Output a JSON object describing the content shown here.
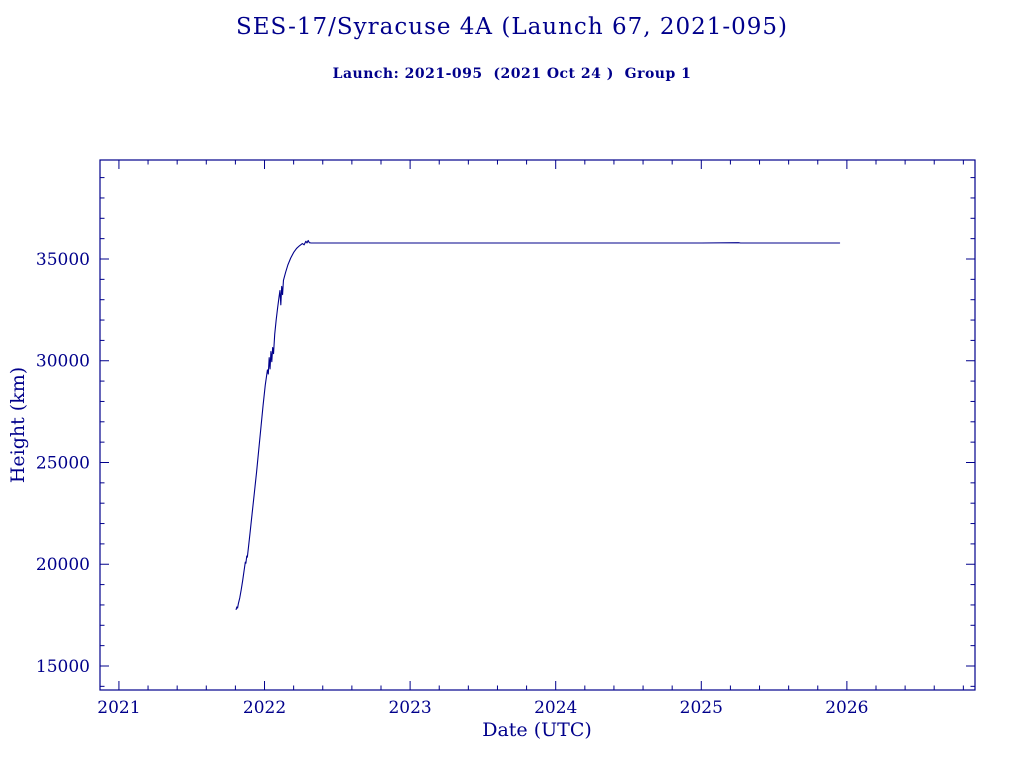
{
  "header": {
    "title": "SES-17/Syracuse 4A (Launch 67, 2021-095)",
    "subtitle": "Launch: 2021-095  (2021 Oct 24 )  Group 1"
  },
  "colors": {
    "accent": "#00008b",
    "background": "#ffffff",
    "line": "#00008b"
  },
  "chart_data": {
    "type": "line",
    "title": "SES-17/Syracuse 4A (Launch 67, 2021-095)",
    "subtitle": "Launch: 2021-095  (2021 Oct 24 )  Group 1",
    "xlabel": "Date (UTC)",
    "ylabel": "Height (km)",
    "xlim": [
      2020.87,
      2026.88
    ],
    "ylim": [
      13820,
      39865
    ],
    "x_ticks": [
      2021,
      2022,
      2023,
      2024,
      2025,
      2026
    ],
    "y_ticks": [
      15000,
      20000,
      25000,
      30000,
      35000
    ],
    "x_minor_step": 0.2,
    "y_minor_step": 1000,
    "grid": false,
    "legend": "none",
    "series": [
      {
        "name": "height",
        "points": [
          [
            2021.805,
            17780
          ],
          [
            2021.81,
            17900
          ],
          [
            2021.815,
            17850
          ],
          [
            2021.82,
            18050
          ],
          [
            2021.83,
            18350
          ],
          [
            2021.84,
            18750
          ],
          [
            2021.85,
            19200
          ],
          [
            2021.86,
            19700
          ],
          [
            2021.868,
            20100
          ],
          [
            2021.872,
            20050
          ],
          [
            2021.878,
            20400
          ],
          [
            2021.882,
            20350
          ],
          [
            2021.89,
            20850
          ],
          [
            2021.9,
            21500
          ],
          [
            2021.915,
            22500
          ],
          [
            2021.93,
            23500
          ],
          [
            2021.945,
            24500
          ],
          [
            2021.96,
            25600
          ],
          [
            2021.975,
            26700
          ],
          [
            2021.99,
            27800
          ],
          [
            2022.005,
            28800
          ],
          [
            2022.02,
            29550
          ],
          [
            2022.026,
            29350
          ],
          [
            2022.032,
            30150
          ],
          [
            2022.038,
            29600
          ],
          [
            2022.044,
            30450
          ],
          [
            2022.05,
            29950
          ],
          [
            2022.056,
            30650
          ],
          [
            2022.062,
            30350
          ],
          [
            2022.07,
            31300
          ],
          [
            2022.08,
            32000
          ],
          [
            2022.09,
            32600
          ],
          [
            2022.1,
            33150
          ],
          [
            2022.106,
            33450
          ],
          [
            2022.112,
            32750
          ],
          [
            2022.118,
            33650
          ],
          [
            2022.124,
            33250
          ],
          [
            2022.13,
            33950
          ],
          [
            2022.145,
            34350
          ],
          [
            2022.16,
            34700
          ],
          [
            2022.18,
            35050
          ],
          [
            2022.2,
            35320
          ],
          [
            2022.22,
            35520
          ],
          [
            2022.24,
            35650
          ],
          [
            2022.26,
            35760
          ],
          [
            2022.272,
            35700
          ],
          [
            2022.284,
            35870
          ],
          [
            2022.292,
            35790
          ],
          [
            2022.3,
            35910
          ],
          [
            2022.308,
            35800
          ],
          [
            2022.32,
            35786
          ],
          [
            2023.0,
            35786
          ],
          [
            2024.0,
            35786
          ],
          [
            2025.0,
            35786
          ],
          [
            2025.255,
            35800
          ],
          [
            2025.27,
            35786
          ],
          [
            2025.95,
            35786
          ]
        ]
      }
    ]
  }
}
